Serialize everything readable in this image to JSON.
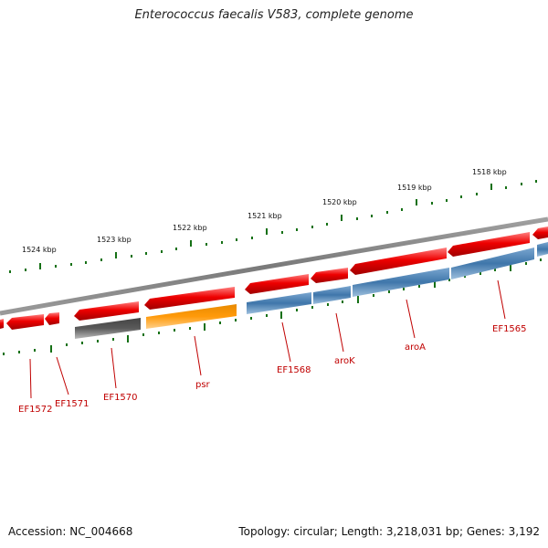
{
  "title": "Enterococcus faecalis V583, complete genome",
  "footer": {
    "accession": "Accession: NC_004668",
    "summary": "Topology: circular; Length: 3,218,031 bp; Genes: 3,192"
  },
  "colors": {
    "backbone": "#808080",
    "forward_gene": "#ee0000",
    "reverse_gene": "#4a7fb0",
    "rna_gene": "#ff9a0a",
    "pseudo_gene": "#5a5a5a",
    "tick": "#157015",
    "label": "#c00000"
  },
  "scale_labels": [
    "1524 kbp",
    "1523 kbp",
    "1522 kbp",
    "1521 kbp",
    "1520 kbp",
    "1519 kbp",
    "1518 kbp"
  ],
  "gene_labels": [
    "EF1572",
    "EF1571",
    "EF1570",
    "psr",
    "EF1568",
    "aroK",
    "aroA",
    "EF1565"
  ]
}
